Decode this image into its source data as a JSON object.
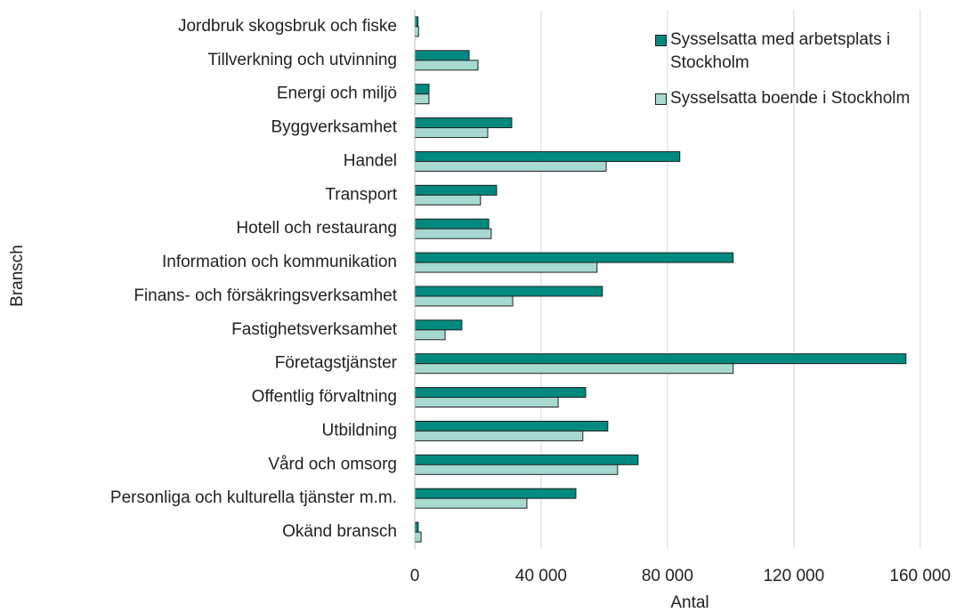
{
  "chart_data": {
    "type": "hbar",
    "categories": [
      "Jordbruk skogsbruk och fiske",
      "Tillverkning och utvinning",
      "Energi och miljö",
      "Byggverksamhet",
      "Handel",
      "Transport",
      "Hotell och restaurang",
      "Information och kommunikation",
      "Finans- och försäkringsverksamhet",
      "Fastighetsverksamhet",
      "Företagstjänster",
      "Offentlig förvaltning",
      "Utbildning",
      "Vård och omsorg",
      "Personliga och kulturella tjänster m.m.",
      "Okänd bransch"
    ],
    "series": [
      {
        "name": "Sysselsatta med arbetsplats i Stockholm",
        "color": "#00897e",
        "values": [
          1000,
          17200,
          4500,
          30700,
          83900,
          25900,
          23400,
          100800,
          59400,
          14900,
          155500,
          54100,
          61100,
          70700,
          51000,
          1100
        ]
      },
      {
        "name": "Sysselsatta boende i Stockholm",
        "color": "#a6d9d0",
        "values": [
          1200,
          20000,
          4500,
          23100,
          60600,
          20800,
          24200,
          57700,
          31000,
          9600,
          100800,
          45400,
          53200,
          64200,
          35500,
          2000
        ]
      }
    ],
    "xlabel": "Antal",
    "ylabel": "Bransch",
    "xlim": [
      0,
      175000
    ],
    "xticks": [
      0,
      {
        "value": 40000,
        "label": "40 000"
      },
      {
        "value": 80000,
        "label": "80 000"
      },
      {
        "value": 120000,
        "label": "120 000"
      },
      {
        "value": 160000,
        "label": "160 000"
      }
    ],
    "grid": true,
    "legend": "upper right"
  }
}
